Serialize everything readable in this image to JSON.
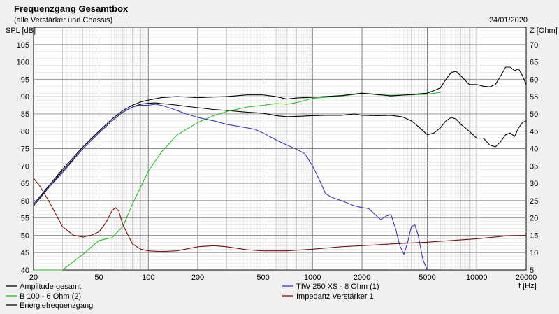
{
  "chart_data": {
    "type": "line",
    "title": "Frequenzgang Gesamtbox",
    "subtitle": "(alle Verstärker und Chassis)",
    "date": "24/01/2020",
    "ylabel": "SPL [dB]",
    "y2label": "Z [Ohm]",
    "xlabel": "f [Hz]",
    "xscale": "log",
    "xlim": [
      20,
      20000
    ],
    "ylim": [
      40,
      110
    ],
    "y2lim": [
      5,
      75
    ],
    "grid": true,
    "x_ticks": [
      "20",
      "50",
      "100",
      "200",
      "500",
      "1000",
      "2000",
      "5000",
      "10000",
      "20000"
    ],
    "y_ticks": [
      "40",
      "45",
      "50",
      "55",
      "60",
      "65",
      "70",
      "75",
      "80",
      "85",
      "90",
      "95",
      "100",
      "105"
    ],
    "y2_ticks": [
      "5",
      "10",
      "15",
      "20",
      "25",
      "30",
      "35",
      "40",
      "45",
      "50",
      "55",
      "60",
      "65",
      "70"
    ],
    "legend_placement": "bottom",
    "series": [
      {
        "name": "Amplitude gesamt",
        "color": "#000000",
        "axis": "left",
        "points": [
          [
            20,
            58.5
          ],
          [
            25,
            64
          ],
          [
            30,
            68.5
          ],
          [
            40,
            75
          ],
          [
            50,
            79.5
          ],
          [
            60,
            83
          ],
          [
            70,
            85.5
          ],
          [
            80,
            87
          ],
          [
            90,
            87.8
          ],
          [
            100,
            88.1
          ],
          [
            110,
            88.2
          ],
          [
            120,
            88
          ],
          [
            140,
            87.7
          ],
          [
            170,
            87.2
          ],
          [
            200,
            86.8
          ],
          [
            250,
            86.3
          ],
          [
            300,
            86
          ],
          [
            400,
            85.5
          ],
          [
            500,
            85.2
          ],
          [
            600,
            84.5
          ],
          [
            700,
            84.2
          ],
          [
            800,
            84.3
          ],
          [
            1000,
            84.5
          ],
          [
            1200,
            84.6
          ],
          [
            1500,
            84.6
          ],
          [
            1800,
            85
          ],
          [
            2000,
            84.6
          ],
          [
            2500,
            84.5
          ],
          [
            3000,
            84.6
          ],
          [
            3500,
            84.2
          ],
          [
            4000,
            83
          ],
          [
            4500,
            81
          ],
          [
            5000,
            79
          ],
          [
            5500,
            79.5
          ],
          [
            6000,
            81
          ],
          [
            6500,
            83
          ],
          [
            7000,
            84
          ],
          [
            7500,
            83.5
          ],
          [
            8000,
            82
          ],
          [
            9000,
            80
          ],
          [
            10000,
            78
          ],
          [
            11000,
            78
          ],
          [
            12000,
            76
          ],
          [
            13000,
            75.5
          ],
          [
            14000,
            77
          ],
          [
            15000,
            79
          ],
          [
            16000,
            79.5
          ],
          [
            17000,
            78.5
          ],
          [
            18000,
            81
          ],
          [
            19000,
            82.5
          ],
          [
            20000,
            83
          ]
        ]
      },
      {
        "name": "B 100 - 6 Ohm (2)",
        "color": "#22c022",
        "axis": "left",
        "points": [
          [
            20,
            40
          ],
          [
            30,
            40
          ],
          [
            40,
            44.5
          ],
          [
            50,
            48.5
          ],
          [
            60,
            49.3
          ],
          [
            70,
            52.5
          ],
          [
            80,
            59
          ],
          [
            90,
            64
          ],
          [
            100,
            68.5
          ],
          [
            120,
            74
          ],
          [
            150,
            79
          ],
          [
            200,
            82.5
          ],
          [
            250,
            84.5
          ],
          [
            300,
            85.7
          ],
          [
            400,
            87
          ],
          [
            500,
            87.5
          ],
          [
            600,
            88
          ],
          [
            700,
            87.8
          ],
          [
            800,
            88.3
          ],
          [
            1000,
            89.5
          ],
          [
            1200,
            89.8
          ],
          [
            1500,
            90.2
          ],
          [
            1800,
            90.6
          ],
          [
            2000,
            91
          ],
          [
            2500,
            90.5
          ],
          [
            3000,
            90.4
          ],
          [
            4000,
            90.5
          ],
          [
            5000,
            90.7
          ],
          [
            6000,
            91.2
          ]
        ]
      },
      {
        "name": "Energiefrequenzgang",
        "color": "#000000",
        "axis": "left",
        "points": [
          [
            20,
            59
          ],
          [
            25,
            64.5
          ],
          [
            30,
            69
          ],
          [
            40,
            75.5
          ],
          [
            50,
            80
          ],
          [
            60,
            83.5
          ],
          [
            70,
            86
          ],
          [
            80,
            87.5
          ],
          [
            90,
            88.5
          ],
          [
            100,
            89
          ],
          [
            120,
            89.7
          ],
          [
            150,
            90
          ],
          [
            200,
            89.7
          ],
          [
            300,
            90
          ],
          [
            400,
            90.5
          ],
          [
            500,
            90.5
          ],
          [
            600,
            90
          ],
          [
            700,
            89.3
          ],
          [
            800,
            89.6
          ],
          [
            1000,
            89.8
          ],
          [
            1500,
            90.3
          ],
          [
            2000,
            91
          ],
          [
            2500,
            90.6
          ],
          [
            3000,
            90.2
          ],
          [
            4000,
            90.6
          ],
          [
            5000,
            91
          ],
          [
            6000,
            92.5
          ],
          [
            6500,
            95
          ],
          [
            7000,
            97
          ],
          [
            7500,
            97.3
          ],
          [
            8000,
            96
          ],
          [
            9000,
            93.5
          ],
          [
            10000,
            93.5
          ],
          [
            11000,
            93
          ],
          [
            12000,
            92.8
          ],
          [
            13000,
            93.5
          ],
          [
            14000,
            96
          ],
          [
            15000,
            98.5
          ],
          [
            16000,
            98.5
          ],
          [
            17000,
            97.5
          ],
          [
            18000,
            98
          ],
          [
            19000,
            96
          ],
          [
            20000,
            93.5
          ]
        ]
      },
      {
        "name": "TIW 250 XS - 8 Ohm (1)",
        "color": "#3b3bc0",
        "axis": "left",
        "points": [
          [
            20,
            59
          ],
          [
            25,
            64
          ],
          [
            30,
            68
          ],
          [
            40,
            75
          ],
          [
            50,
            79.5
          ],
          [
            60,
            83
          ],
          [
            70,
            85.5
          ],
          [
            80,
            87
          ],
          [
            90,
            87.5
          ],
          [
            100,
            87.5
          ],
          [
            110,
            87.8
          ],
          [
            120,
            87.5
          ],
          [
            140,
            86.5
          ],
          [
            170,
            85
          ],
          [
            200,
            84
          ],
          [
            250,
            83
          ],
          [
            300,
            82
          ],
          [
            400,
            81
          ],
          [
            450,
            80.5
          ],
          [
            500,
            79.5
          ],
          [
            600,
            77.5
          ],
          [
            700,
            76
          ],
          [
            800,
            74.8
          ],
          [
            900,
            73.5
          ],
          [
            1000,
            70
          ],
          [
            1100,
            66
          ],
          [
            1200,
            62
          ],
          [
            1300,
            61
          ],
          [
            1500,
            60
          ],
          [
            1800,
            58.5
          ],
          [
            2000,
            58
          ],
          [
            2200,
            57.7
          ],
          [
            2400,
            56
          ],
          [
            2600,
            54.5
          ],
          [
            2800,
            55.5
          ],
          [
            3000,
            56
          ],
          [
            3200,
            52
          ],
          [
            3400,
            47
          ],
          [
            3600,
            44.5
          ],
          [
            3800,
            48
          ],
          [
            4000,
            52.5
          ],
          [
            4200,
            53
          ],
          [
            4400,
            50
          ],
          [
            4700,
            43
          ],
          [
            5000,
            40
          ]
        ]
      },
      {
        "name": "Impedanz Verstärker 1",
        "color": "#7a1010",
        "axis": "right",
        "points": [
          [
            20,
            31.5
          ],
          [
            22,
            29
          ],
          [
            25,
            24.5
          ],
          [
            30,
            17.5
          ],
          [
            35,
            15
          ],
          [
            40,
            14.5
          ],
          [
            45,
            15
          ],
          [
            50,
            16
          ],
          [
            55,
            18.5
          ],
          [
            60,
            22
          ],
          [
            63,
            23
          ],
          [
            66,
            22
          ],
          [
            70,
            18
          ],
          [
            80,
            12.5
          ],
          [
            90,
            11
          ],
          [
            100,
            10.5
          ],
          [
            120,
            10.3
          ],
          [
            150,
            10.5
          ],
          [
            200,
            11.7
          ],
          [
            250,
            12
          ],
          [
            300,
            11.7
          ],
          [
            400,
            10.8
          ],
          [
            500,
            10.5
          ],
          [
            700,
            10.5
          ],
          [
            1000,
            11
          ],
          [
            1500,
            11.7
          ],
          [
            2000,
            12
          ],
          [
            3000,
            12.5
          ],
          [
            5000,
            13
          ],
          [
            7000,
            13.5
          ],
          [
            10000,
            14
          ],
          [
            15000,
            14.8
          ],
          [
            20000,
            15
          ]
        ]
      }
    ]
  }
}
